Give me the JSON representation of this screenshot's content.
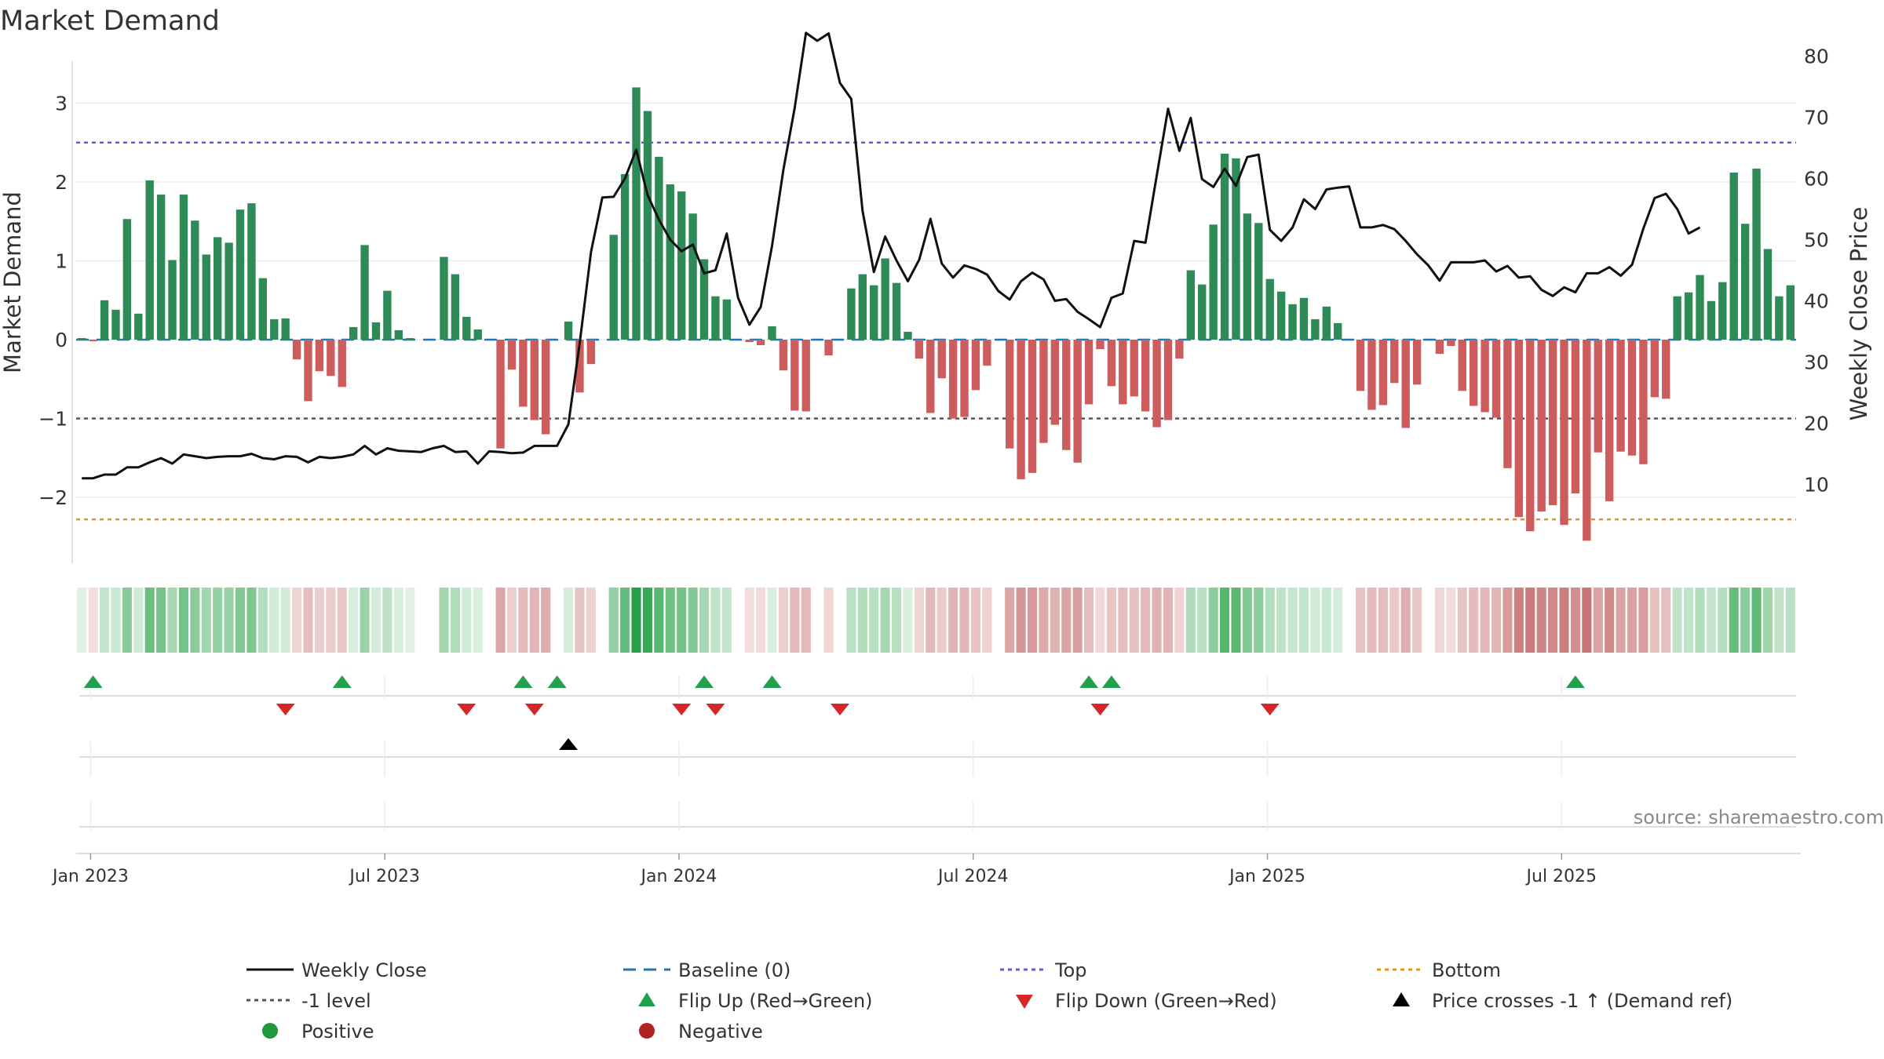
{
  "chart_data": {
    "type": "bar+line",
    "title": "Market Demand",
    "ylabel_left": "Market Demand",
    "ylabel_right": "Weekly Close Price",
    "source": "source: sharemaestro.com",
    "left_yticks": [
      3,
      2,
      1,
      0,
      -1,
      -2
    ],
    "left_ytick_labels": [
      "3",
      "2",
      "1",
      "0",
      "−1",
      "−2"
    ],
    "right_yticks": [
      80,
      70,
      60,
      50,
      40,
      30,
      20,
      10
    ],
    "right_ytick_labels": [
      "80",
      "70",
      "60",
      "50",
      "40",
      "30",
      "20",
      "10"
    ],
    "ylim_left": [
      -2.85,
      3.55
    ],
    "ylim_right": [
      6.5,
      90
    ],
    "x_tick_labels": [
      "Jan 2023",
      "Jul 2023",
      "Jan 2024",
      "Jul 2024",
      "Jan 2025",
      "Jul 2025"
    ],
    "x_tick_weeks": [
      1,
      27,
      53,
      79,
      105,
      131
    ],
    "reference_lines": {
      "top": 2.5,
      "minus_one": -1.0,
      "bottom": -2.28,
      "baseline": 0
    },
    "demand": [
      0.02,
      -0.02,
      0.5,
      0.38,
      1.53,
      0.33,
      2.02,
      1.84,
      1.01,
      1.84,
      1.51,
      1.08,
      1.3,
      1.23,
      1.65,
      1.73,
      0.78,
      0.26,
      0.27,
      -0.25,
      -0.78,
      -0.4,
      -0.46,
      -0.6,
      0.16,
      1.2,
      0.22,
      0.62,
      0.12,
      0.02,
      0,
      0,
      1.05,
      0.83,
      0.29,
      0.13,
      0,
      -1.38,
      -0.38,
      -0.85,
      -1.02,
      -1.2,
      0,
      0.23,
      -0.67,
      -0.31,
      0,
      1.33,
      2.1,
      3.2,
      2.9,
      2.32,
      1.97,
      1.88,
      1.6,
      1.02,
      0.55,
      0.51,
      0,
      -0.03,
      -0.07,
      0.17,
      -0.39,
      -0.9,
      -0.91,
      0,
      -0.2,
      0,
      0.65,
      0.83,
      0.69,
      1.03,
      0.72,
      0.1,
      -0.24,
      -0.93,
      -0.49,
      -1.0,
      -0.98,
      -0.64,
      -0.33,
      0,
      -1.38,
      -1.77,
      -1.69,
      -1.31,
      -1.08,
      -1.4,
      -1.56,
      -0.82,
      -0.12,
      -0.59,
      -0.82,
      -0.72,
      -0.91,
      -1.11,
      -1.02,
      -0.24,
      0.88,
      0.7,
      1.46,
      2.36,
      2.3,
      1.6,
      1.48,
      0.77,
      0.61,
      0.45,
      0.53,
      0.26,
      0.42,
      0.21,
      0,
      -0.65,
      -0.89,
      -0.83,
      -0.55,
      -1.12,
      -0.57,
      0,
      -0.18,
      -0.08,
      -0.65,
      -0.84,
      -0.92,
      -0.99,
      -1.63,
      -2.25,
      -2.43,
      -2.18,
      -2.1,
      -2.35,
      -1.95,
      -2.55,
      -1.43,
      -2.05,
      -1.42,
      -1.47,
      -1.58,
      -0.73,
      -0.75,
      0.55,
      0.6,
      0.82,
      0.49,
      0.73,
      2.12,
      1.47,
      2.17,
      1.15,
      0.55,
      0.69
    ],
    "weekly_close": [
      11,
      11,
      11.6,
      11.6,
      12.8,
      12.8,
      13.6,
      14.3,
      13.4,
      14.9,
      14.6,
      14.3,
      14.5,
      14.6,
      14.6,
      15.0,
      14.3,
      14.1,
      14.6,
      14.5,
      13.6,
      14.5,
      14.3,
      14.5,
      14.9,
      16.3,
      14.9,
      15.9,
      15.5,
      15.4,
      15.3,
      15.9,
      16.3,
      15.3,
      15.4,
      13.4,
      15.4,
      15.3,
      15.1,
      15.2,
      16.3,
      16.3,
      16.3,
      19.8,
      33,
      48,
      56.9,
      57,
      60,
      64.7,
      57.3,
      53.3,
      50,
      48.1,
      49.2,
      44.5,
      45,
      51,
      40.5,
      36.1,
      39,
      49,
      61.4,
      71.5,
      83.8,
      82.5,
      83.7,
      75.6,
      73,
      54.7,
      44.7,
      50.5,
      46.6,
      43.2,
      46.7,
      53.4,
      46.1,
      43.8,
      45.8,
      45.2,
      44.3,
      41.6,
      40.2,
      43.2,
      44.6,
      43.5,
      40,
      40.3,
      38.2,
      37,
      35.7,
      40.5,
      41.2,
      49.8,
      49.5,
      60.5,
      71.4,
      64.5,
      69.9,
      59.9,
      58.6,
      61.6,
      58.8,
      63.5,
      63.9,
      51.6,
      49.8,
      52,
      56.6,
      55,
      58.2,
      58.5,
      58.7,
      52,
      52,
      52.4,
      51.7,
      49.8,
      47.6,
      45.8,
      43.3,
      46.3,
      46.3,
      46.3,
      46.6,
      44.8,
      45.7,
      43.8,
      44,
      41.8,
      40.8,
      42.2,
      41.4,
      44.5,
      44.5,
      45.5,
      44.1,
      45.9,
      51.8,
      56.8,
      57.5,
      55,
      51,
      52
    ]
  },
  "legend": {
    "weekly_close": "Weekly Close",
    "baseline": "Baseline (0)",
    "top": "Top",
    "bottom": "Bottom",
    "minus_one": "-1 level",
    "flip_up": "Flip Up (Red→Green)",
    "flip_down": "Flip Down (Green→Red)",
    "price_cross": "Price crosses -1 ↑ (Demand ref)",
    "positive": "Positive",
    "negative": "Negative"
  },
  "signals": {
    "flip_up_weeks": [
      1,
      23,
      39,
      42,
      55,
      61,
      89,
      91,
      132
    ],
    "flip_down_weeks": [
      18,
      34,
      40,
      53,
      56,
      67,
      90,
      105
    ],
    "price_cross_weeks": [
      43
    ]
  },
  "colors": {
    "positive_bar": "#2e8b57",
    "negative_bar": "#cd5c5c",
    "line": "#111111",
    "top": "#6a5acd",
    "bottom": "#e8901a",
    "minus_one": "#555555",
    "baseline": "#1f77b4",
    "flip_up": "#22a04b",
    "flip_down": "#d62728",
    "price_cross": "#000000",
    "positive_dot": "#1e9a3a",
    "negative_dot": "#b22222"
  }
}
